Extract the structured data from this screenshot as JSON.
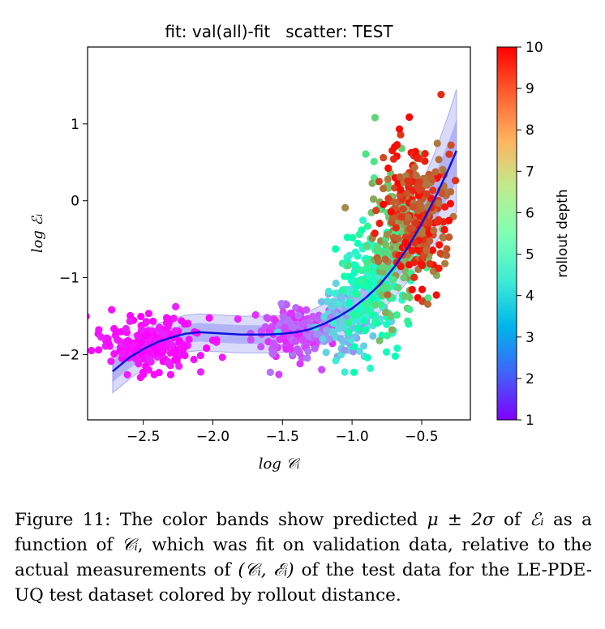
{
  "chart_data": {
    "type": "scatter",
    "title": "fit: val(all)-fit   scatter: TEST",
    "xlabel": "log 𝒞ᵢ",
    "ylabel": "log ℰᵢ",
    "xlim": [
      -2.9,
      -0.15
    ],
    "ylim": [
      -2.85,
      2.0
    ],
    "xticks": [
      -2.5,
      -2.0,
      -1.5,
      -1.0,
      -0.5
    ],
    "xtick_labels": [
      "−2.5",
      "−2.0",
      "−1.5",
      "−1.0",
      "−0.5"
    ],
    "yticks": [
      -2,
      -1,
      0,
      1
    ],
    "ytick_labels": [
      "−2",
      "−1",
      "0",
      "1"
    ],
    "grid": false,
    "colorbar": {
      "label": "rollout depth",
      "range": [
        1,
        10
      ],
      "ticks": [
        1,
        2,
        3,
        4,
        5,
        6,
        7,
        8,
        9,
        10
      ],
      "colormap": "rainbow"
    },
    "fit_curve": {
      "x": [
        -2.72,
        -2.6,
        -2.5,
        -2.4,
        -2.3,
        -2.2,
        -2.1,
        -2.0,
        -1.9,
        -1.8,
        -1.7,
        -1.6,
        -1.5,
        -1.4,
        -1.3,
        -1.2,
        -1.1,
        -1.0,
        -0.9,
        -0.8,
        -0.7,
        -0.6,
        -0.5,
        -0.4,
        -0.3,
        -0.25
      ],
      "mean": [
        -2.22,
        -2.04,
        -1.93,
        -1.84,
        -1.78,
        -1.73,
        -1.71,
        -1.72,
        -1.73,
        -1.74,
        -1.74,
        -1.74,
        -1.73,
        -1.71,
        -1.67,
        -1.6,
        -1.51,
        -1.4,
        -1.26,
        -1.09,
        -0.87,
        -0.61,
        -0.3,
        0.05,
        0.44,
        0.65
      ],
      "sigma": [
        0.14,
        0.14,
        0.13,
        0.12,
        0.12,
        0.12,
        0.12,
        0.12,
        0.12,
        0.12,
        0.12,
        0.12,
        0.12,
        0.12,
        0.12,
        0.13,
        0.14,
        0.15,
        0.16,
        0.18,
        0.2,
        0.22,
        0.26,
        0.3,
        0.36,
        0.4
      ],
      "color": "#1010dd",
      "band_color": "#5555ee"
    },
    "scatter_clusters": [
      {
        "depth_range": [
          1,
          1.4
        ],
        "x_center": -2.45,
        "x_spread": 0.18,
        "y_center": -1.85,
        "y_spread": 0.17,
        "count": 230
      },
      {
        "depth_range": [
          1.4,
          2.5
        ],
        "x_center": -1.45,
        "x_spread": 0.13,
        "y_center": -1.72,
        "y_spread": 0.18,
        "count": 160
      },
      {
        "depth_range": [
          2.5,
          4.5
        ],
        "x_center": -1.05,
        "x_spread": 0.12,
        "y_center": -1.5,
        "y_spread": 0.25,
        "count": 170
      },
      {
        "depth_range": [
          4.5,
          6.5
        ],
        "x_center": -0.85,
        "x_spread": 0.12,
        "y_center": -1.05,
        "y_spread": 0.35,
        "count": 170
      },
      {
        "depth_range": [
          6.5,
          8.5
        ],
        "x_center": -0.65,
        "x_spread": 0.12,
        "y_center": -0.5,
        "y_spread": 0.45,
        "count": 180
      },
      {
        "depth_range": [
          8.5,
          10
        ],
        "x_center": -0.52,
        "x_spread": 0.12,
        "y_center": -0.15,
        "y_spread": 0.45,
        "count": 260
      }
    ]
  },
  "caption": {
    "prefix": "Figure 11: The color bands show predicted ",
    "math1": "μ ± 2σ",
    "mid1": " of ",
    "math2": "ℰᵢ",
    "mid2": " as a function of ",
    "math3": "𝒞ᵢ",
    "mid3": ", which was fit on validation data, relative to the actual measurements of ",
    "math4": "(𝒞ᵢ, ℰᵢ)",
    "suffix": " of the test data for the LE-PDE-UQ test dataset colored by rollout distance."
  }
}
